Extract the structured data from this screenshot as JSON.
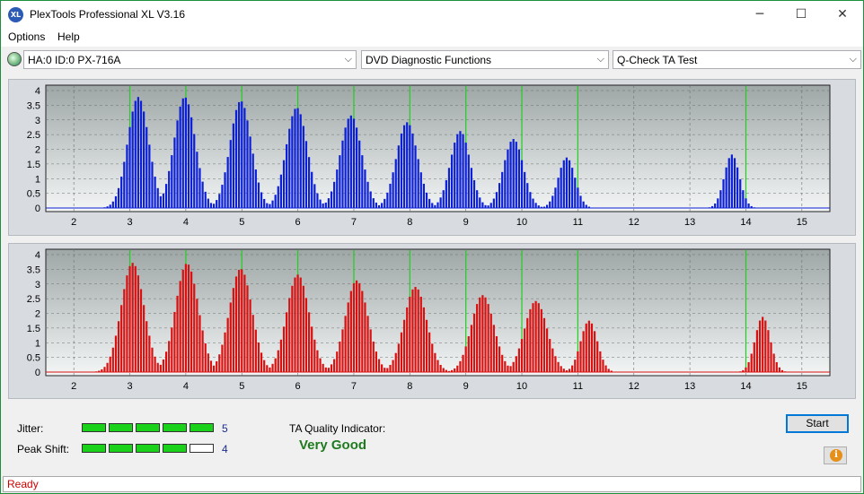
{
  "window": {
    "title": "PlexTools Professional XL V3.16",
    "icon": "XL"
  },
  "window_buttons": {
    "minimize": "─",
    "maximize": "☐",
    "close": "✕"
  },
  "menu": [
    "Options",
    "Help"
  ],
  "toolbar": {
    "drive": "HA:0 ID:0  PX-716A",
    "function": "DVD Diagnostic Functions",
    "test": "Q-Check TA Test",
    "arrow": "⌵"
  },
  "chart_data": [
    {
      "type": "bar",
      "name": "top-histogram",
      "color": "#0b1fd6",
      "xlim": [
        1.5,
        15.5
      ],
      "ylim": [
        0,
        4
      ],
      "x_ticks": [
        "2",
        "3",
        "4",
        "5",
        "6",
        "7",
        "8",
        "9",
        "10",
        "11",
        "12",
        "13",
        "14",
        "15"
      ],
      "y_ticks": [
        "0",
        "0.5",
        "1",
        "1.5",
        "2",
        "2.5",
        "3",
        "3.5",
        "4"
      ],
      "green_lines": [
        3,
        4,
        5,
        6,
        7,
        8,
        9,
        10,
        11,
        14
      ],
      "peaks": [
        {
          "center": 3.15,
          "height": 3.78,
          "width": 0.28
        },
        {
          "center": 3.98,
          "height": 3.78,
          "width": 0.28
        },
        {
          "center": 4.98,
          "height": 3.65,
          "width": 0.28
        },
        {
          "center": 5.98,
          "height": 3.42,
          "width": 0.28
        },
        {
          "center": 6.95,
          "height": 3.15,
          "width": 0.28
        },
        {
          "center": 7.95,
          "height": 2.92,
          "width": 0.28
        },
        {
          "center": 8.9,
          "height": 2.62,
          "width": 0.26
        },
        {
          "center": 9.85,
          "height": 2.35,
          "width": 0.26
        },
        {
          "center": 10.8,
          "height": 1.72,
          "width": 0.22
        },
        {
          "center": 13.75,
          "height": 1.82,
          "width": 0.2
        }
      ]
    },
    {
      "type": "bar",
      "name": "bottom-histogram",
      "color": "#d81010",
      "xlim": [
        1.5,
        15.5
      ],
      "ylim": [
        0,
        4
      ],
      "x_ticks": [
        "2",
        "3",
        "4",
        "5",
        "6",
        "7",
        "8",
        "9",
        "10",
        "11",
        "12",
        "13",
        "14",
        "15"
      ],
      "y_ticks": [
        "0",
        "0.5",
        "1",
        "1.5",
        "2",
        "2.5",
        "3",
        "3.5",
        "4"
      ],
      "green_lines": [
        3,
        4,
        5,
        6,
        7,
        8,
        9,
        10,
        11,
        14
      ],
      "peaks": [
        {
          "center": 3.05,
          "height": 3.72,
          "width": 0.3
        },
        {
          "center": 4.02,
          "height": 3.7,
          "width": 0.3
        },
        {
          "center": 4.98,
          "height": 3.52,
          "width": 0.3
        },
        {
          "center": 6.0,
          "height": 3.32,
          "width": 0.3
        },
        {
          "center": 7.05,
          "height": 3.12,
          "width": 0.3
        },
        {
          "center": 8.1,
          "height": 2.9,
          "width": 0.3
        },
        {
          "center": 9.3,
          "height": 2.62,
          "width": 0.3
        },
        {
          "center": 10.25,
          "height": 2.42,
          "width": 0.3
        },
        {
          "center": 11.2,
          "height": 1.75,
          "width": 0.22
        },
        {
          "center": 14.3,
          "height": 1.88,
          "width": 0.2
        }
      ]
    }
  ],
  "indicators": {
    "jitter_label": "Jitter:",
    "jitter_value": "5",
    "jitter_level": 5,
    "peak_shift_label": "Peak Shift:",
    "peak_shift_value": "4",
    "peak_shift_level": 4,
    "quality_label": "TA Quality Indicator:",
    "quality_value": "Very Good"
  },
  "buttons": {
    "start": "Start",
    "info": "i"
  },
  "status": "Ready"
}
